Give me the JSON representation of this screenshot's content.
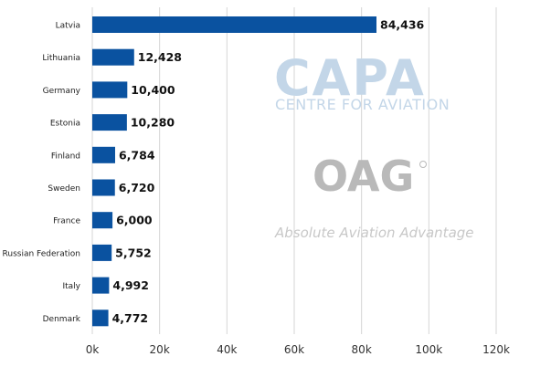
{
  "chart_data": {
    "type": "bar",
    "orientation": "horizontal",
    "categories": [
      "Latvia",
      "Lithuania",
      "Germany",
      "Estonia",
      "Finland",
      "Sweden",
      "France",
      "Russian Federation",
      "Italy",
      "Denmark"
    ],
    "values": [
      84436,
      12428,
      10400,
      10280,
      6784,
      6720,
      6000,
      5752,
      4992,
      4772
    ],
    "value_labels": [
      "84,436",
      "12,428",
      "10,400",
      "10,280",
      "6,784",
      "6,720",
      "6,000",
      "5,752",
      "4,992",
      "4,772"
    ],
    "xlim": [
      0,
      120000
    ],
    "x_ticks": [
      0,
      20000,
      40000,
      60000,
      80000,
      100000,
      120000
    ],
    "x_tick_labels": [
      "0k",
      "20k",
      "40k",
      "60k",
      "80k",
      "100k",
      "120k"
    ],
    "grid": "vertical",
    "bar_color": "#0a52a0",
    "title": "",
    "xlabel": "",
    "ylabel": ""
  },
  "watermarks": {
    "capa_logo": "CAPA",
    "capa_tagline": "CENTRE FOR AVIATION",
    "oag_logo": "OAG",
    "oag_tagline": "Absolute Aviation Advantage",
    "capa_color": "#c3d6e8",
    "oag_color": "#b9b9b9"
  }
}
